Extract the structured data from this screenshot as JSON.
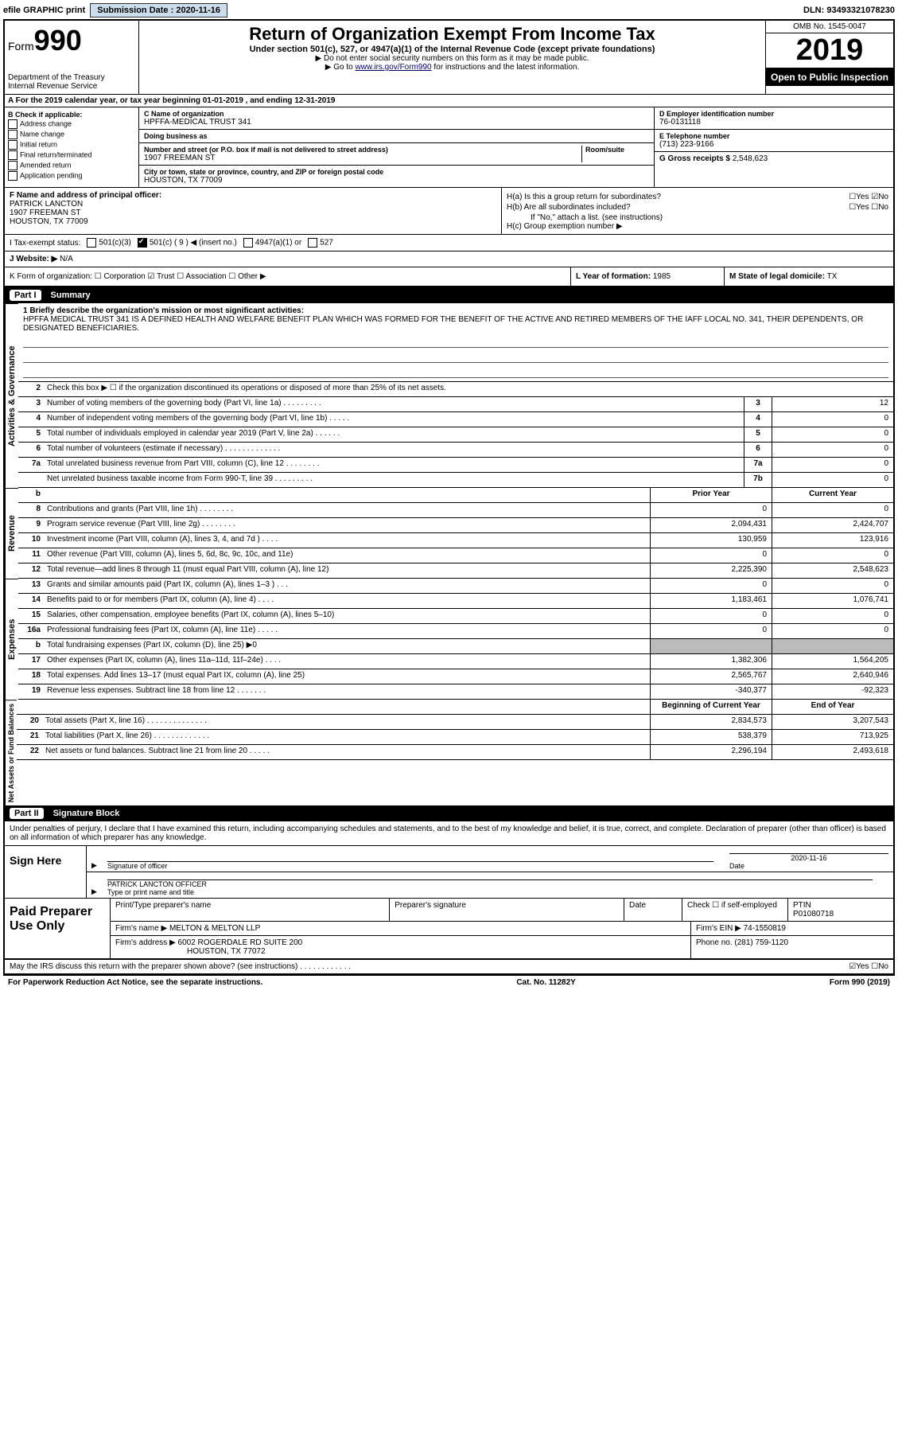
{
  "topbar": {
    "efile": "efile GRAPHIC print",
    "sub_label": "Submission Date :",
    "sub_date": "2020-11-16",
    "dln": "DLN: 93493321078230"
  },
  "header": {
    "form_prefix": "Form",
    "form_num": "990",
    "dept": "Department of the Treasury\nInternal Revenue Service",
    "title": "Return of Organization Exempt From Income Tax",
    "sub1": "Under section 501(c), 527, or 4947(a)(1) of the Internal Revenue Code (except private foundations)",
    "note1": "▶ Do not enter social security numbers on this form as it may be made public.",
    "note2_pre": "▶ Go to ",
    "note2_link": "www.irs.gov/Form990",
    "note2_post": " for instructions and the latest information.",
    "omb": "OMB No. 1545-0047",
    "year": "2019",
    "inspect": "Open to Public Inspection"
  },
  "row_a": "A For the 2019 calendar year, or tax year beginning 01-01-2019   , and ending 12-31-2019",
  "col_b": {
    "hdr": "B Check if applicable:",
    "opts": [
      "Address change",
      "Name change",
      "Initial return",
      "Final return/terminated",
      "Amended return",
      "Application pending"
    ]
  },
  "block_c": {
    "name_lbl": "C Name of organization",
    "name": "HPFFA-MEDICAL TRUST 341",
    "dba_lbl": "Doing business as",
    "addr_lbl": "Number and street (or P.O. box if mail is not delivered to street address)",
    "room_lbl": "Room/suite",
    "addr": "1907 FREEMAN ST",
    "city_lbl": "City or town, state or province, country, and ZIP or foreign postal code",
    "city": "HOUSTON, TX  77009"
  },
  "block_d": {
    "lbl": "D Employer identification number",
    "val": "76-0131118"
  },
  "block_e": {
    "lbl": "E Telephone number",
    "val": "(713) 223-9166"
  },
  "block_g": {
    "lbl": "G Gross receipts $",
    "val": "2,548,623"
  },
  "block_f": {
    "lbl": "F Name and address of principal officer:",
    "name": "PATRICK LANCTON",
    "addr1": "1907 FREEMAN ST",
    "addr2": "HOUSTON, TX  77009"
  },
  "block_h": {
    "ha": "H(a)  Is this a group return for subordinates?",
    "ha_ans": "☐Yes ☑No",
    "hb": "H(b)  Are all subordinates included?",
    "hb_ans": "☐Yes ☐No",
    "hb_note": "If \"No,\" attach a list. (see instructions)",
    "hc": "H(c)  Group exemption number ▶"
  },
  "tax_exempt": {
    "lbl": "I   Tax-exempt status:",
    "c3": "501(c)(3)",
    "c": "501(c) ( 9 ) ◀ (insert no.)",
    "a1": "4947(a)(1) or",
    "c527": "527"
  },
  "row_j": {
    "lbl": "J   Website: ▶",
    "val": "N/A"
  },
  "row_k": "K Form of organization:   ☐ Corporation   ☑ Trust   ☐ Association   ☐ Other ▶",
  "row_l": {
    "lbl": "L Year of formation:",
    "val": "1985"
  },
  "row_m": {
    "lbl": "M State of legal domicile:",
    "val": "TX"
  },
  "part1": {
    "num": "Part I",
    "title": "Summary"
  },
  "mission": {
    "lbl": "1  Briefly describe the organization's mission or most significant activities:",
    "text": "HPFFA MEDICAL TRUST 341 IS A DEFINED HEALTH AND WELFARE BENEFIT PLAN WHICH WAS FORMED FOR THE BENEFIT OF THE ACTIVE AND RETIRED MEMBERS OF THE IAFF LOCAL NO. 341, THEIR DEPENDENTS, OR DESIGNATED BENEFICIARIES."
  },
  "gov": {
    "title": "Activities & Governance",
    "l2": "Check this box ▶ ☐  if the organization discontinued its operations or disposed of more than 25% of its net assets.",
    "rows": [
      {
        "n": "3",
        "d": "Number of voting members of the governing body (Part VI, line 1a)  .   .   .   .   .   .   .   .   .",
        "b": "3",
        "v": "12"
      },
      {
        "n": "4",
        "d": "Number of independent voting members of the governing body (Part VI, line 1b)  .   .   .   .   .",
        "b": "4",
        "v": "0"
      },
      {
        "n": "5",
        "d": "Total number of individuals employed in calendar year 2019 (Part V, line 2a)  .   .   .   .   .   .",
        "b": "5",
        "v": "0"
      },
      {
        "n": "6",
        "d": "Total number of volunteers (estimate if necessary)   .   .   .   .   .   .   .   .   .   .   .   .   .",
        "b": "6",
        "v": "0"
      },
      {
        "n": "7a",
        "d": "Total unrelated business revenue from Part VIII, column (C), line 12  .   .   .   .   .   .   .   .",
        "b": "7a",
        "v": "0"
      },
      {
        "n": "",
        "d": "Net unrelated business taxable income from Form 990-T, line 39   .   .   .   .   .   .   .   .   .",
        "b": "7b",
        "v": "0"
      }
    ]
  },
  "rev": {
    "title": "Revenue",
    "hdr_prior": "Prior Year",
    "hdr_curr": "Current Year",
    "rows": [
      {
        "n": "8",
        "d": "Contributions and grants (Part VIII, line 1h)   .   .   .   .   .   .   .   .",
        "p": "0",
        "c": "0"
      },
      {
        "n": "9",
        "d": "Program service revenue (Part VIII, line 2g)   .   .   .   .   .   .   .   .",
        "p": "2,094,431",
        "c": "2,424,707"
      },
      {
        "n": "10",
        "d": "Investment income (Part VIII, column (A), lines 3, 4, and 7d )   .   .   .   .",
        "p": "130,959",
        "c": "123,916"
      },
      {
        "n": "11",
        "d": "Other revenue (Part VIII, column (A), lines 5, 6d, 8c, 9c, 10c, and 11e)",
        "p": "0",
        "c": "0"
      },
      {
        "n": "12",
        "d": "Total revenue—add lines 8 through 11 (must equal Part VIII, column (A), line 12)",
        "p": "2,225,390",
        "c": "2,548,623"
      }
    ]
  },
  "exp": {
    "title": "Expenses",
    "rows": [
      {
        "n": "13",
        "d": "Grants and similar amounts paid (Part IX, column (A), lines 1–3 )  .   .   .",
        "p": "0",
        "c": "0"
      },
      {
        "n": "14",
        "d": "Benefits paid to or for members (Part IX, column (A), line 4)   .   .   .   .",
        "p": "1,183,461",
        "c": "1,076,741"
      },
      {
        "n": "15",
        "d": "Salaries, other compensation, employee benefits (Part IX, column (A), lines 5–10)",
        "p": "0",
        "c": "0"
      },
      {
        "n": "16a",
        "d": "Professional fundraising fees (Part IX, column (A), line 11e)  .   .   .   .   .",
        "p": "0",
        "c": "0"
      }
    ],
    "row_b": {
      "n": "b",
      "d": "Total fundraising expenses (Part IX, column (D), line 25) ▶0"
    },
    "rows2": [
      {
        "n": "17",
        "d": "Other expenses (Part IX, column (A), lines 11a–11d, 11f–24e)   .   .   .   .",
        "p": "1,382,306",
        "c": "1,564,205"
      },
      {
        "n": "18",
        "d": "Total expenses. Add lines 13–17 (must equal Part IX, column (A), line 25)",
        "p": "2,565,767",
        "c": "2,640,946"
      },
      {
        "n": "19",
        "d": "Revenue less expenses. Subtract line 18 from line 12   .   .   .   .   .   .   .",
        "p": "-340,377",
        "c": "-92,323"
      }
    ]
  },
  "net": {
    "title": "Net Assets or Fund Balances",
    "hdr_beg": "Beginning of Current Year",
    "hdr_end": "End of Year",
    "rows": [
      {
        "n": "20",
        "d": "Total assets (Part X, line 16)  .   .   .   .   .   .   .   .   .   .   .   .   .   .",
        "p": "2,834,573",
        "c": "3,207,543"
      },
      {
        "n": "21",
        "d": "Total liabilities (Part X, line 26)  .   .   .   .   .   .   .   .   .   .   .   .   .",
        "p": "538,379",
        "c": "713,925"
      },
      {
        "n": "22",
        "d": "Net assets or fund balances. Subtract line 21 from line 20   .   .   .   .   .",
        "p": "2,296,194",
        "c": "2,493,618"
      }
    ]
  },
  "part2": {
    "num": "Part II",
    "title": "Signature Block"
  },
  "sig": {
    "decl": "Under penalties of perjury, I declare that I have examined this return, including accompanying schedules and statements, and to the best of my knowledge and belief, it is true, correct, and complete. Declaration of preparer (other than officer) is based on all information of which preparer has any knowledge.",
    "here": "Sign Here",
    "sig_lbl": "Signature of officer",
    "date_lbl": "Date",
    "date_val": "2020-11-16",
    "name": "PATRICK LANCTON  OFFICER",
    "name_lbl": "Type or print name and title"
  },
  "paid": {
    "title": "Paid Preparer Use Only",
    "h1": "Print/Type preparer's name",
    "h2": "Preparer's signature",
    "h3": "Date",
    "h4_chk": "Check ☐ if self-employed",
    "h4_ptin_lbl": "PTIN",
    "h4_ptin": "P01080718",
    "firm_lbl": "Firm's name    ▶",
    "firm": "MELTON & MELTON LLP",
    "ein_lbl": "Firm's EIN ▶",
    "ein": "74-1550819",
    "addr_lbl": "Firm's address ▶",
    "addr1": "6002 ROGERDALE RD SUITE 200",
    "addr2": "HOUSTON, TX  77072",
    "phone_lbl": "Phone no.",
    "phone": "(281) 759-1120"
  },
  "discuss": {
    "q": "May the IRS discuss this return with the preparer shown above? (see instructions)   .   .   .   .   .   .   .   .   .   .   .   .",
    "ans": "☑Yes   ☐No"
  },
  "footer": {
    "left": "For Paperwork Reduction Act Notice, see the separate instructions.",
    "mid": "Cat. No. 11282Y",
    "right": "Form 990 (2019)"
  }
}
